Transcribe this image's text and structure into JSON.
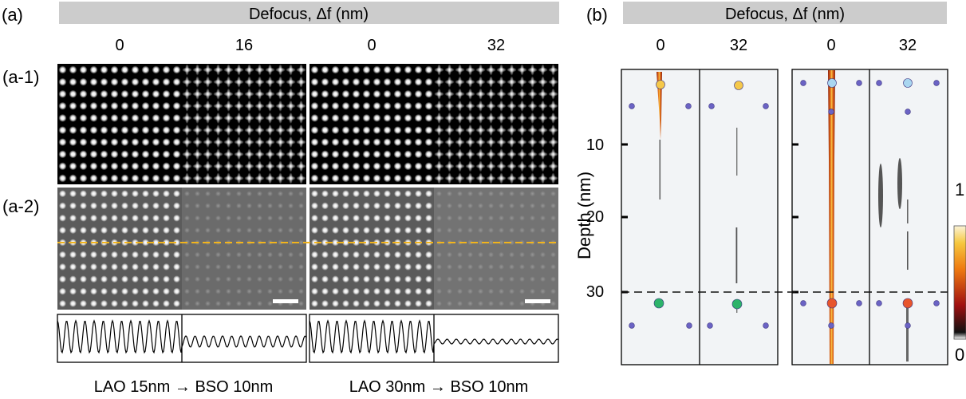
{
  "panel_a": {
    "label": "(a)",
    "header": "Defocus, Δf (nm)",
    "columns": [
      "0",
      "16",
      "0",
      "32"
    ],
    "row_labels": [
      "(a-1)",
      "(a-2)"
    ],
    "captions": [
      "LAO 15nm → BSO 10nm",
      "LAO 30nm → BSO 10nm"
    ]
  },
  "panel_b": {
    "label": "(b)",
    "header": "Defocus, Δf (nm)",
    "columns": [
      "0",
      "32",
      "0",
      "32"
    ],
    "ylabel": "Depth (nm)",
    "yticks": [
      "10",
      "20",
      "30"
    ],
    "colorbar": {
      "max_label": "1",
      "min_label": "0"
    }
  },
  "colors": {
    "header_bar": "#cccccc",
    "dashed_cut": "#f2b41c",
    "interface_line": "#111111",
    "atom": "#6b63c4",
    "atom_top": "#f5c84a",
    "atom_top_light": "#a9d6f0",
    "atom_bottom_green": "#2db36a",
    "atom_bottom_red": "#e8552c",
    "beam": "#e07b16"
  }
}
